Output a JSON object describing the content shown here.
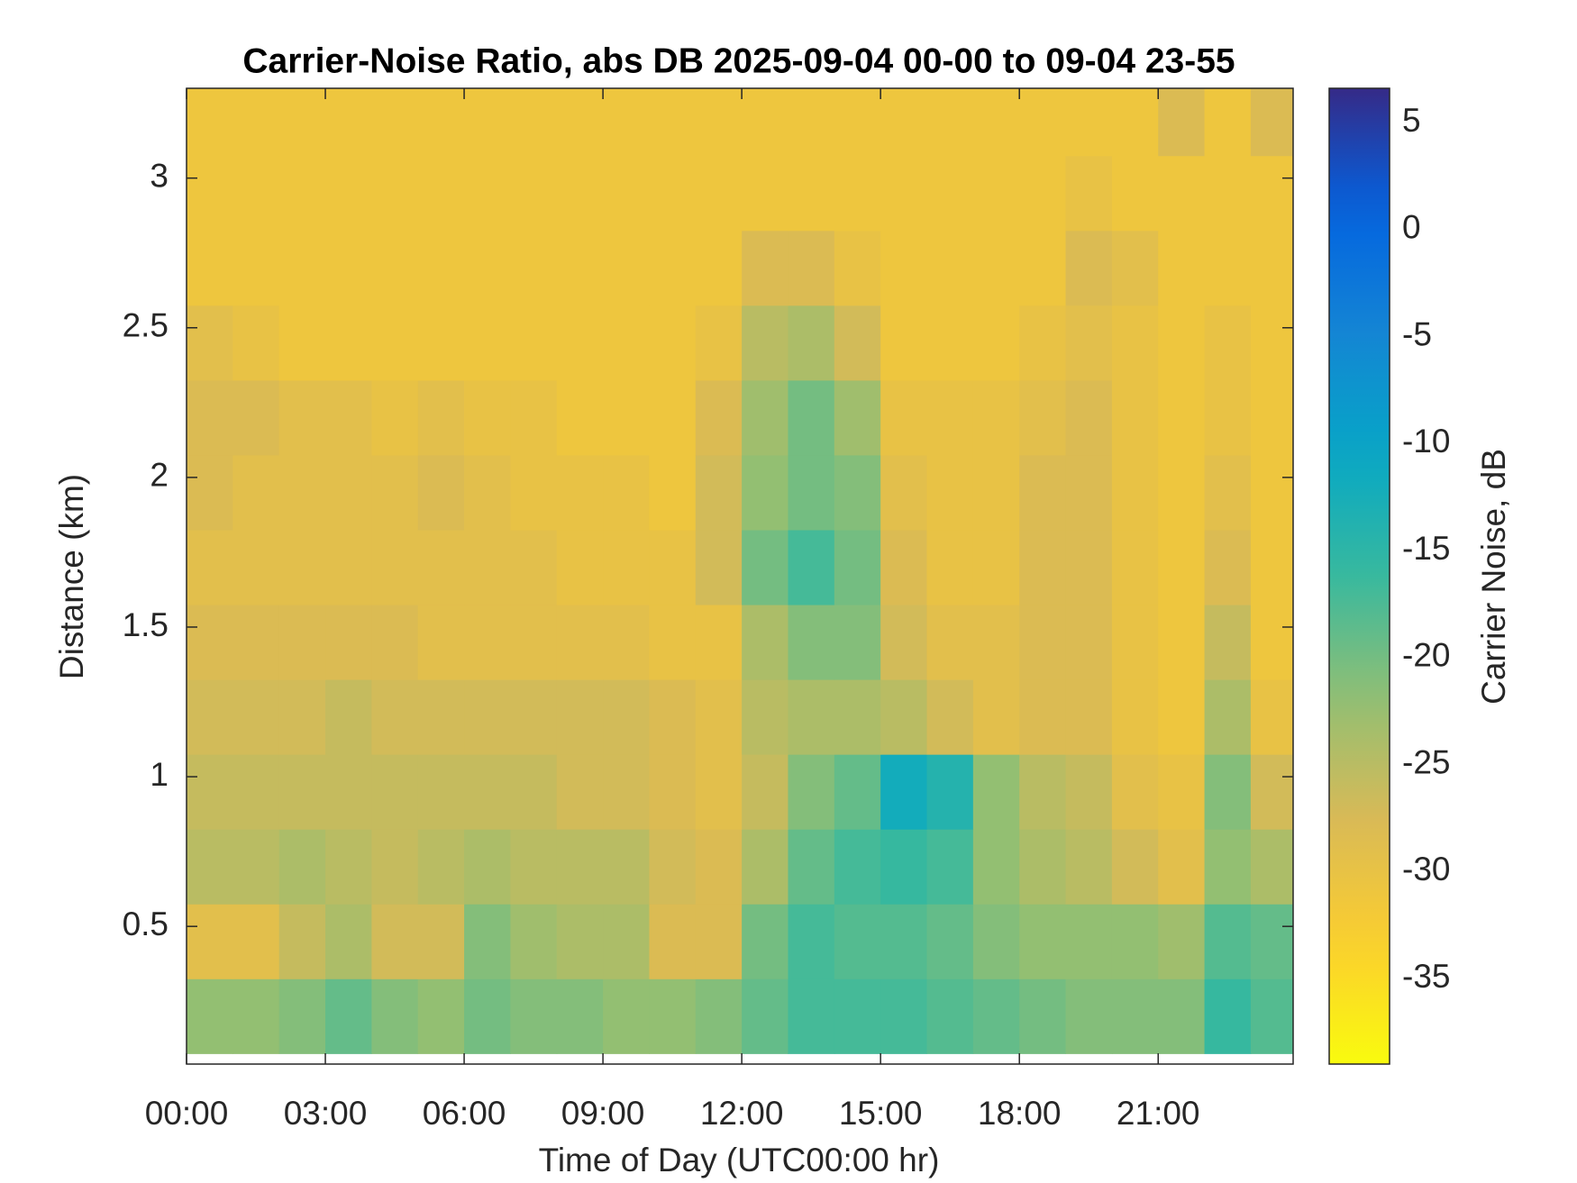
{
  "chart_data": {
    "type": "heatmap",
    "title": "Carrier-Noise Ratio, abs DB 2025-09-04 00-00 to 09-04 23-55",
    "x_label": "Time of Day (UTC00:00 hr)",
    "y_label": "Distance (km)",
    "colorbar_label": "Carrier Noise, dB",
    "colormap": "parula",
    "colormap_reversed": true,
    "x": [
      0.5,
      1.5,
      2.5,
      3.5,
      4.5,
      5.5,
      6.5,
      7.5,
      8.5,
      9.5,
      10.5,
      11.5,
      12.5,
      13.5,
      14.5,
      15.5,
      16.5,
      17.5,
      18.5,
      19.5,
      20.5,
      21.5,
      22.5,
      23.5
    ],
    "y": [
      0.2,
      0.45,
      0.7,
      0.95,
      1.2,
      1.45,
      1.7,
      1.95,
      2.2,
      2.45,
      2.7,
      2.95,
      3.2
    ],
    "z": [
      [
        -22,
        -22,
        -21,
        -19,
        -21,
        -22,
        -20,
        -21,
        -21,
        -22,
        -22,
        -21,
        -19,
        -17,
        -17,
        -17,
        -18,
        -19,
        -20,
        -21,
        -21,
        -21,
        -16,
        -18
      ],
      [
        -29,
        -29,
        -26,
        -24,
        -27,
        -27,
        -21,
        -23,
        -24,
        -24,
        -28,
        -28,
        -20,
        -17,
        -18,
        -18,
        -19,
        -21,
        -22,
        -22,
        -22,
        -23,
        -18,
        -19
      ],
      [
        -25,
        -25,
        -24,
        -25,
        -26,
        -25,
        -24,
        -25,
        -25,
        -25,
        -27,
        -28,
        -24,
        -19,
        -17,
        -16,
        -17,
        -22,
        -24,
        -25,
        -27,
        -29,
        -22,
        -24
      ],
      [
        -26,
        -26,
        -26,
        -26,
        -26,
        -26,
        -26,
        -26,
        -27,
        -27,
        -28,
        -29,
        -26,
        -21,
        -19,
        -12,
        -14,
        -22,
        -25,
        -26,
        -29,
        -30,
        -21,
        -27
      ],
      [
        -27,
        -27,
        -27,
        -26,
        -27,
        -27,
        -27,
        -27,
        -27,
        -27,
        -28,
        -29,
        -25,
        -24,
        -24,
        -25,
        -27,
        -29,
        -28,
        -28,
        -30,
        -31,
        -24,
        -30
      ],
      [
        -28,
        -28,
        -28,
        -28,
        -28,
        -29,
        -29,
        -29,
        -29,
        -29,
        -30,
        -30,
        -24,
        -21,
        -21,
        -27,
        -29,
        -29,
        -28,
        -28,
        -30,
        -31,
        -26,
        -31
      ],
      [
        -29,
        -29,
        -29,
        -29,
        -29,
        -29,
        -29,
        -29,
        -30,
        -30,
        -30,
        -27,
        -20,
        -17,
        -20,
        -28,
        -30,
        -30,
        -28,
        -28,
        -30,
        -31,
        -28,
        -31
      ],
      [
        -28,
        -29,
        -29,
        -29,
        -29,
        -28,
        -29,
        -30,
        -30,
        -30,
        -31,
        -27,
        -22,
        -20,
        -21,
        -29,
        -30,
        -30,
        -28,
        -28,
        -30,
        -31,
        -29,
        -31
      ],
      [
        -28,
        -28,
        -29,
        -29,
        -30,
        -29,
        -30,
        -30,
        -31,
        -31,
        -31,
        -28,
        -23,
        -20,
        -23,
        -30,
        -30,
        -30,
        -29,
        -28,
        -30,
        -31,
        -30,
        -31
      ],
      [
        -29,
        -30,
        -31,
        -31,
        -31,
        -31,
        -31,
        -31,
        -31,
        -31,
        -31,
        -30,
        -25,
        -24,
        -27,
        -31,
        -31,
        -31,
        -30,
        -29,
        -30,
        -31,
        -30,
        -31
      ],
      [
        -31,
        -31,
        -31,
        -31,
        -31,
        -31,
        -31,
        -31,
        -31,
        -31,
        -31,
        -31,
        -28,
        -28,
        -30,
        -31,
        -31,
        -31,
        -31,
        -28,
        -29,
        -31,
        -31,
        -31
      ],
      [
        -31,
        -31,
        -31,
        -31,
        -31,
        -31,
        -31,
        -31,
        -31,
        -31,
        -31,
        -31,
        -31,
        -31,
        -31,
        -31,
        -31,
        -31,
        -31,
        -30,
        -31,
        -31,
        -31,
        -31
      ],
      [
        -31,
        -31,
        -31,
        -31,
        -31,
        -31,
        -31,
        -31,
        -31,
        -31,
        -31,
        -31,
        -31,
        -31,
        -31,
        -31,
        -31,
        -31,
        -31,
        -31,
        -31,
        -28,
        -31,
        -28
      ]
    ],
    "xlim": [
      0,
      23.917
    ],
    "ylim": [
      0.04,
      3.3
    ],
    "xticks": [
      {
        "value": 0,
        "label": "00:00"
      },
      {
        "value": 3,
        "label": "03:00"
      },
      {
        "value": 6,
        "label": "06:00"
      },
      {
        "value": 9,
        "label": "09:00"
      },
      {
        "value": 12,
        "label": "12:00"
      },
      {
        "value": 15,
        "label": "15:00"
      },
      {
        "value": 18,
        "label": "18:00"
      },
      {
        "value": 21,
        "label": "21:00"
      }
    ],
    "yticks": [
      0.5,
      1,
      1.5,
      2,
      2.5,
      3
    ],
    "clim": [
      -39,
      6.6
    ],
    "cticks": [
      5,
      0,
      -5,
      -10,
      -15,
      -20,
      -25,
      -30,
      -35
    ]
  }
}
